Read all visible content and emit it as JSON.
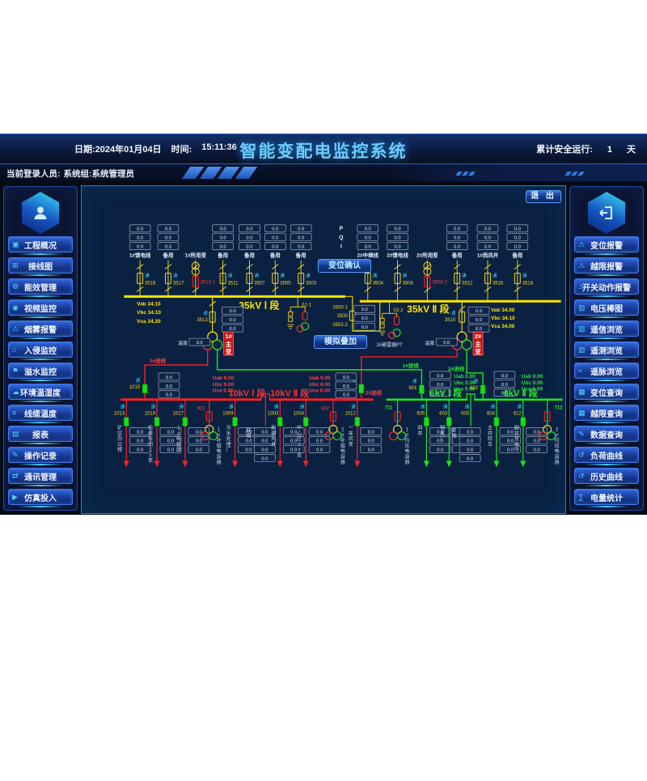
{
  "header": {
    "date": "日期:2024年01月04日",
    "time_label": "时间:",
    "time_value": "15:11:36",
    "title": "智能变配电监控系统",
    "run_label": "累计安全运行:",
    "run_value": "1",
    "run_unit": "天"
  },
  "login": {
    "label": "当前登录人员:",
    "value": "系统组:系统管理员"
  },
  "buttons": {
    "exit": "退 出",
    "confirm": "变位确认",
    "overlay": "模拟叠加"
  },
  "left_menu": [
    {
      "key": "project-overview",
      "icon": "user",
      "label": "工程概况"
    },
    {
      "key": "wiring-diagram",
      "icon": "grid",
      "label": "接线图"
    },
    {
      "key": "energy-management",
      "icon": "gear",
      "label": "能效管理"
    },
    {
      "key": "video-monitor",
      "icon": "camera",
      "label": "视频监控"
    },
    {
      "key": "smoke-alarm",
      "icon": "bell",
      "label": "烟雾报警"
    },
    {
      "key": "intrusion-monitor",
      "icon": "door",
      "label": "入侵监控"
    },
    {
      "key": "water-leak-monitor",
      "icon": "flag",
      "label": "溢水监控"
    },
    {
      "key": "env-temp-humidity",
      "icon": "globe",
      "label": "环境温湿度"
    },
    {
      "key": "cable-temperature",
      "icon": "cable",
      "label": "线缆温度"
    },
    {
      "key": "reports",
      "icon": "report",
      "label": "报表"
    },
    {
      "key": "operation-log",
      "icon": "record",
      "label": "操作记录"
    },
    {
      "key": "comm-management",
      "icon": "comm",
      "label": "通讯管理"
    },
    {
      "key": "simulation-input",
      "icon": "sim",
      "label": "仿真投入"
    }
  ],
  "right_menu": [
    {
      "key": "displacement-alarm",
      "icon": "bell",
      "label": "变位报警"
    },
    {
      "key": "limit-alarm",
      "icon": "bell",
      "label": "越限报警"
    },
    {
      "key": "switch-action-alarm",
      "icon": "bell",
      "label": "开关动作报警"
    },
    {
      "key": "voltage-bar-chart",
      "icon": "bar",
      "label": "电压棒图"
    },
    {
      "key": "telesignal-view",
      "icon": "clip",
      "label": "遥信浏览"
    },
    {
      "key": "telemetry-view",
      "icon": "clip",
      "label": "遥测浏览"
    },
    {
      "key": "telepulse-view",
      "icon": "wave",
      "label": "遥脉浏览"
    },
    {
      "key": "displacement-query",
      "icon": "query",
      "label": "变位查询"
    },
    {
      "key": "limit-query",
      "icon": "query",
      "label": "越限查询"
    },
    {
      "key": "data-query",
      "icon": "pencil",
      "label": "数据查询"
    },
    {
      "key": "load-curve",
      "icon": "curve",
      "label": "负荷曲线"
    },
    {
      "key": "history-curve",
      "icon": "curve",
      "label": "历史曲线"
    },
    {
      "key": "energy-statistics",
      "icon": "stat",
      "label": "电量统计"
    }
  ],
  "colors": {
    "accent_cyan": "#35d5ff",
    "bus_35kv": "#ffe400",
    "bus_10kv": "#ff2020",
    "bus_6kv": "#1ae81a",
    "alarm_red": "#e01818",
    "button_blue": "#2e63d8",
    "panel_bg": "#0a2142",
    "closed_breaker_green": "#16e016"
  },
  "diagram": {
    "meter_default": "0.0",
    "pqi": [
      "P",
      "Q",
      "I"
    ],
    "indicator": "通",
    "kv35": {
      "bus1": {
        "label": "35kV Ⅰ 段",
        "meas": [
          "Vab 34.10",
          "Vbc 34.10",
          "Vca 34.20"
        ],
        "bays": [
          {
            "name": "1#馈电线",
            "id": "3519"
          },
          {
            "name": "备用",
            "id": "3517"
          },
          {
            "name": "1#所用变",
            "id": "3515-1",
            "type": "tf"
          },
          {
            "name": "备用",
            "id": "3511"
          },
          {
            "name": "备用",
            "id": "3507"
          },
          {
            "name": "备用",
            "id": "3505"
          },
          {
            "name": "备用",
            "id": "3503"
          }
        ]
      },
      "bus2": {
        "label": "35kV Ⅱ 段",
        "meas": [
          "Vab 34.00",
          "Vbc 34.10",
          "Vca 34.00"
        ],
        "bays": [
          {
            "name": "2#中继线",
            "id": "3504"
          },
          {
            "name": "2#馈电线",
            "id": "3506"
          },
          {
            "name": "2#所用变",
            "id": "3508-2",
            "type": "tf"
          },
          {
            "name": "备用",
            "id": "3512"
          },
          {
            "name": "1#西风井",
            "id": "3516"
          },
          {
            "name": "备用",
            "id": "3518"
          }
        ]
      },
      "tie": {
        "upper": "3500-1",
        "breaker": "3500",
        "lower": "3502-2"
      },
      "pt1": {
        "switch": "01-1"
      },
      "pt2": {
        "switch": "02-2",
        "label": "2#避雷器PT"
      },
      "tf1": {
        "id": "3513",
        "name": "1#主变",
        "temp_label": "温度",
        "temp_value": "0.0"
      },
      "tf2": {
        "id": "3510",
        "name": "2#主变",
        "temp_label": "温度",
        "temp_value": "0.0"
      }
    },
    "kv10": {
      "bus1": {
        "label": "10kV Ⅰ 段",
        "meas": [
          "Uab 0.00",
          "Ubc 0.00",
          "Uca 0.00"
        ]
      },
      "bus2": {
        "label": "10kV Ⅱ 段",
        "meas": [
          "Uab 0.00",
          "Ubc 0.00",
          "Uca 0.00"
        ]
      },
      "in1": {
        "id": "1015",
        "label": "1#进线"
      },
      "in2": {
        "id": "1006",
        "label": "2#进线"
      },
      "feeders1": [
        {
          "id": "1013",
          "name": "矿区办公楼"
        },
        {
          "id": "1019",
          "name": "检修车间1#变"
        },
        {
          "id": "1017",
          "name": "1#电容器"
        },
        {
          "id": "901",
          "name": "1#补偿电容器",
          "type": "cap"
        },
        {
          "id": "1009",
          "name": "污水处理厂"
        }
      ],
      "tie": {
        "name": "联络",
        "meters": 4
      },
      "feeders2": [
        {
          "id": "1003",
          "name": "新建风井"
        },
        {
          "id": "1004",
          "name": "中心区1#变"
        },
        {
          "id": "902",
          "name": "2#补偿电容器",
          "type": "cap"
        },
        {
          "id": "1012",
          "name": "一车间变"
        }
      ]
    },
    "kv6": {
      "bus1": {
        "label": "6kV Ⅰ 段",
        "meas": [
          "Uab 0.00",
          "Ubc 0.00",
          "Uca 0.00"
        ],
        "end": "711"
      },
      "bus2": {
        "label": "6kV Ⅱ 段",
        "meas": [
          "Uab 0.00",
          "Ubc 0.00",
          "Uca 0.00"
        ],
        "end": "712"
      },
      "in1": {
        "id": "601",
        "label": "1#进线"
      },
      "in2": {
        "id": "602",
        "label": "2#进线"
      },
      "feeders1": [
        {
          "id": "",
          "name": "1#均压电容器",
          "type": "cap"
        },
        {
          "id": "605",
          "name": "斜井"
        },
        {
          "id": "603",
          "name": "制氮厂"
        }
      ],
      "tie": {
        "id": "600",
        "name": "联络",
        "meters": 4
      },
      "feeders2": [
        {
          "id": "604",
          "name": "主井绞车"
        },
        {
          "id": "612",
          "name": "副井变电所"
        },
        {
          "id": "",
          "name": "2#均压电容器",
          "type": "cap"
        }
      ]
    }
  }
}
